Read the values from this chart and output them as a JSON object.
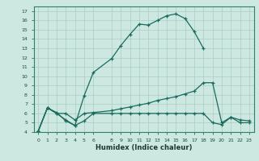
{
  "xlabel": "Humidex (Indice chaleur)",
  "background_color": "#cce8e0",
  "grid_color": "#aaccC4",
  "line_color": "#1a6b5e",
  "xlim": [
    -0.5,
    23.5
  ],
  "ylim": [
    4,
    17.5
  ],
  "xticks": [
    0,
    1,
    2,
    3,
    4,
    5,
    6,
    8,
    9,
    10,
    11,
    12,
    13,
    14,
    15,
    16,
    17,
    18,
    19,
    20,
    21,
    22,
    23
  ],
  "yticks": [
    4,
    5,
    6,
    7,
    8,
    9,
    10,
    11,
    12,
    13,
    14,
    15,
    16,
    17
  ],
  "line1_x": [
    0,
    1,
    2,
    3,
    4,
    5,
    6,
    8,
    9,
    10,
    11,
    12,
    13,
    14,
    15,
    16,
    17,
    18
  ],
  "line1_y": [
    4.1,
    6.6,
    6.1,
    5.2,
    4.7,
    7.9,
    10.4,
    11.9,
    13.3,
    14.5,
    15.6,
    15.5,
    16.0,
    16.5,
    16.7,
    16.2,
    14.8,
    13.0
  ],
  "line2_x": [
    0,
    1,
    2,
    3,
    4,
    5,
    6,
    8,
    9,
    10,
    11,
    12,
    13,
    14,
    15,
    16,
    17,
    18,
    19,
    20,
    21,
    22,
    23
  ],
  "line2_y": [
    4.1,
    6.6,
    6.0,
    6.0,
    5.3,
    6.0,
    6.1,
    6.3,
    6.5,
    6.7,
    6.9,
    7.1,
    7.4,
    7.6,
    7.8,
    8.1,
    8.4,
    9.3,
    9.3,
    5.0,
    5.6,
    5.3,
    5.2
  ],
  "line3_x": [
    0,
    1,
    2,
    3,
    4,
    5,
    6,
    8,
    9,
    10,
    11,
    12,
    13,
    14,
    15,
    16,
    17,
    18,
    19,
    20,
    21,
    22,
    23
  ],
  "line3_y": [
    4.1,
    6.6,
    6.0,
    5.3,
    4.7,
    5.2,
    6.0,
    6.0,
    6.0,
    6.0,
    6.0,
    6.0,
    6.0,
    6.0,
    6.0,
    6.0,
    6.0,
    6.0,
    5.0,
    4.8,
    5.6,
    5.0,
    5.0
  ]
}
